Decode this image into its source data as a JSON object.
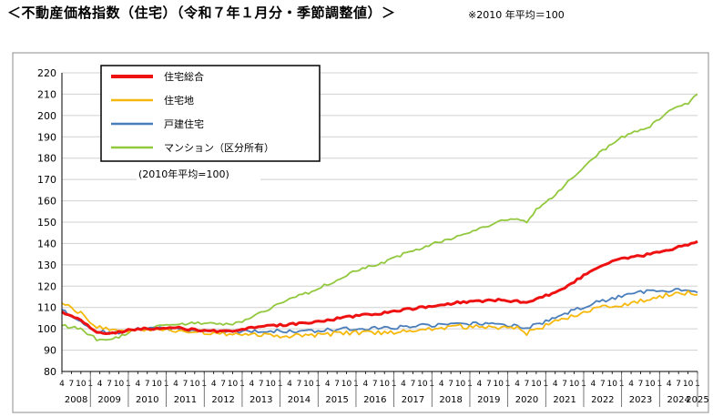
{
  "header": {
    "title": "＜不動産価格指数（住宅）（令和７年１月分・季節調整値）＞",
    "note": "※2010 年平均＝100"
  },
  "chart_data": {
    "type": "line",
    "inset_note": "(2010年平均=100)",
    "ylim": [
      80,
      220
    ],
    "yticks": [
      80,
      90,
      100,
      110,
      120,
      130,
      140,
      150,
      160,
      170,
      180,
      190,
      200,
      210,
      220
    ],
    "x_start": "2008-04",
    "x_end": "2025-01",
    "month_tick_labels": [
      "4",
      "7",
      "10",
      "1"
    ],
    "years": [
      "2008",
      "2009",
      "2010",
      "2011",
      "2012",
      "2013",
      "2014",
      "2015",
      "2016",
      "2017",
      "2018",
      "2019",
      "2020",
      "2021",
      "2022",
      "2023",
      "2024",
      "2025"
    ],
    "grid": true,
    "legend_position": "top-left",
    "series": [
      {
        "name": "住宅総合",
        "color": "#ee1111",
        "points": [
          [
            "2008-04",
            108
          ],
          [
            "2008-10",
            104
          ],
          [
            "2009-03",
            98.5
          ],
          [
            "2009-07",
            97.5
          ],
          [
            "2009-10",
            98.5
          ],
          [
            "2010-04",
            100
          ],
          [
            "2010-10",
            100
          ],
          [
            "2011-04",
            100.5
          ],
          [
            "2011-10",
            99.5
          ],
          [
            "2012-04",
            99
          ],
          [
            "2012-10",
            99
          ],
          [
            "2013-04",
            100.5
          ],
          [
            "2013-10",
            101.5
          ],
          [
            "2014-04",
            102
          ],
          [
            "2014-10",
            103
          ],
          [
            "2015-04",
            104
          ],
          [
            "2015-10",
            105.5
          ],
          [
            "2016-04",
            106.5
          ],
          [
            "2016-10",
            107.5
          ],
          [
            "2017-04",
            109
          ],
          [
            "2017-10",
            110
          ],
          [
            "2018-04",
            111
          ],
          [
            "2018-10",
            112.5
          ],
          [
            "2019-04",
            113
          ],
          [
            "2019-10",
            113.5
          ],
          [
            "2020-04",
            113
          ],
          [
            "2020-07",
            112
          ],
          [
            "2020-10",
            114
          ],
          [
            "2021-04",
            117
          ],
          [
            "2021-10",
            122
          ],
          [
            "2022-04",
            128
          ],
          [
            "2022-10",
            132
          ],
          [
            "2023-04",
            133.5
          ],
          [
            "2023-10",
            135
          ],
          [
            "2024-04",
            137
          ],
          [
            "2024-10",
            139.5
          ],
          [
            "2025-01",
            141
          ]
        ]
      },
      {
        "name": "住宅地",
        "color": "#f6b80a",
        "points": [
          [
            "2008-04",
            112
          ],
          [
            "2008-10",
            107
          ],
          [
            "2009-03",
            101
          ],
          [
            "2009-07",
            100
          ],
          [
            "2009-10",
            98
          ],
          [
            "2010-04",
            100
          ],
          [
            "2010-10",
            100
          ],
          [
            "2011-04",
            99
          ],
          [
            "2011-10",
            98.5
          ],
          [
            "2012-04",
            98
          ],
          [
            "2012-10",
            97.5
          ],
          [
            "2013-04",
            97.5
          ],
          [
            "2013-10",
            97
          ],
          [
            "2014-04",
            96.5
          ],
          [
            "2014-10",
            97
          ],
          [
            "2015-04",
            97.5
          ],
          [
            "2015-10",
            98
          ],
          [
            "2016-04",
            98
          ],
          [
            "2016-10",
            98
          ],
          [
            "2017-04",
            99
          ],
          [
            "2017-10",
            100
          ],
          [
            "2018-04",
            100.5
          ],
          [
            "2018-10",
            101
          ],
          [
            "2019-04",
            101
          ],
          [
            "2019-10",
            100.5
          ],
          [
            "2020-04",
            100.5
          ],
          [
            "2020-07",
            98
          ],
          [
            "2020-10",
            100
          ],
          [
            "2021-04",
            103
          ],
          [
            "2021-10",
            106
          ],
          [
            "2022-04",
            109
          ],
          [
            "2022-10",
            111
          ],
          [
            "2023-04",
            111.5
          ],
          [
            "2023-10",
            114.5
          ],
          [
            "2024-04",
            116
          ],
          [
            "2024-10",
            117
          ],
          [
            "2025-01",
            116
          ]
        ]
      },
      {
        "name": "戸建住宅",
        "color": "#4a7ebb",
        "points": [
          [
            "2008-04",
            109
          ],
          [
            "2008-10",
            103
          ],
          [
            "2009-03",
            99
          ],
          [
            "2009-07",
            98
          ],
          [
            "2009-10",
            98.5
          ],
          [
            "2010-04",
            100
          ],
          [
            "2010-10",
            100
          ],
          [
            "2011-04",
            100
          ],
          [
            "2011-10",
            99
          ],
          [
            "2012-04",
            98.5
          ],
          [
            "2012-10",
            98.5
          ],
          [
            "2013-04",
            99
          ],
          [
            "2013-10",
            99
          ],
          [
            "2014-04",
            99
          ],
          [
            "2014-10",
            99
          ],
          [
            "2015-04",
            99.5
          ],
          [
            "2015-10",
            100
          ],
          [
            "2016-04",
            100
          ],
          [
            "2016-10",
            100.5
          ],
          [
            "2017-04",
            101
          ],
          [
            "2017-10",
            101.5
          ],
          [
            "2018-04",
            102
          ],
          [
            "2018-10",
            102.5
          ],
          [
            "2019-04",
            102.5
          ],
          [
            "2019-10",
            102
          ],
          [
            "2020-04",
            101.5
          ],
          [
            "2020-07",
            100.5
          ],
          [
            "2020-10",
            102
          ],
          [
            "2021-04",
            105
          ],
          [
            "2021-10",
            109
          ],
          [
            "2022-04",
            112
          ],
          [
            "2022-10",
            114
          ],
          [
            "2023-04",
            117
          ],
          [
            "2023-10",
            117.5
          ],
          [
            "2024-04",
            118
          ],
          [
            "2024-10",
            118
          ],
          [
            "2025-01",
            117
          ]
        ]
      },
      {
        "name": "マンション（区分所有）",
        "color": "#92c83e",
        "points": [
          [
            "2008-04",
            101.5
          ],
          [
            "2008-10",
            100
          ],
          [
            "2009-03",
            95
          ],
          [
            "2009-07",
            95
          ],
          [
            "2009-10",
            96
          ],
          [
            "2010-04",
            100
          ],
          [
            "2010-10",
            101
          ],
          [
            "2011-04",
            102
          ],
          [
            "2011-10",
            103
          ],
          [
            "2012-04",
            102.5
          ],
          [
            "2012-10",
            102
          ],
          [
            "2013-04",
            105
          ],
          [
            "2013-10",
            110
          ],
          [
            "2014-04",
            114
          ],
          [
            "2014-10",
            117
          ],
          [
            "2015-04",
            121
          ],
          [
            "2015-10",
            125
          ],
          [
            "2016-04",
            129
          ],
          [
            "2016-10",
            131
          ],
          [
            "2017-04",
            135
          ],
          [
            "2017-10",
            138
          ],
          [
            "2018-04",
            141
          ],
          [
            "2018-10",
            144
          ],
          [
            "2019-04",
            147
          ],
          [
            "2019-10",
            150
          ],
          [
            "2020-04",
            152
          ],
          [
            "2020-07",
            150
          ],
          [
            "2020-10",
            156
          ],
          [
            "2021-04",
            163
          ],
          [
            "2021-10",
            172
          ],
          [
            "2022-04",
            180
          ],
          [
            "2022-10",
            187
          ],
          [
            "2023-04",
            192
          ],
          [
            "2023-10",
            195
          ],
          [
            "2024-04",
            202
          ],
          [
            "2024-10",
            206
          ],
          [
            "2025-01",
            210
          ]
        ]
      }
    ]
  }
}
